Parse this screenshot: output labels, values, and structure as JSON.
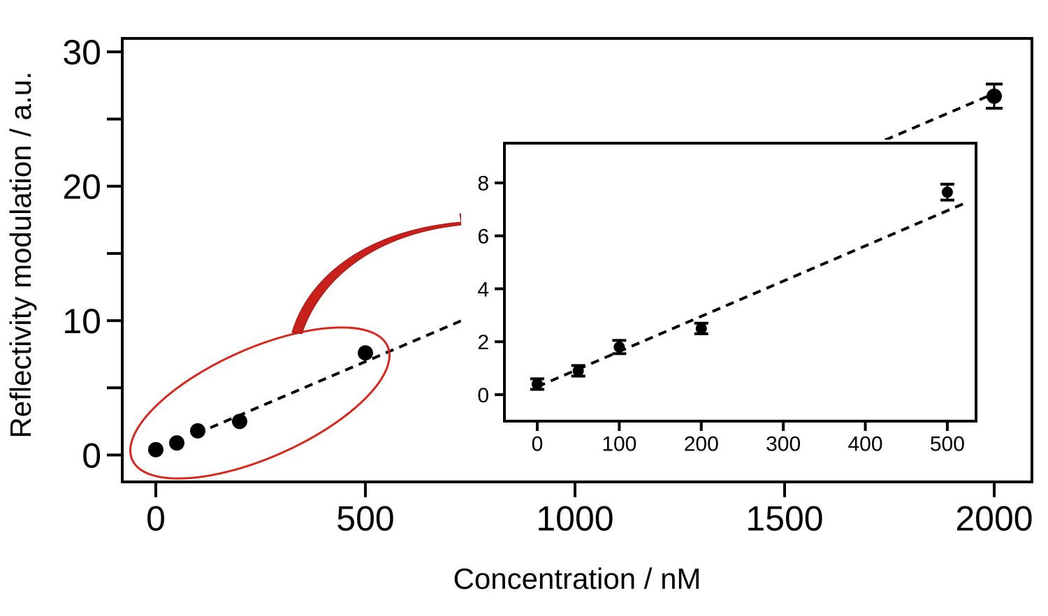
{
  "chart_data": [
    {
      "type": "scatter",
      "panel": "main",
      "xlabel": "Concentration / nM",
      "ylabel": "Reflectivity modulation / a.u.",
      "xlim": [
        -80,
        2090
      ],
      "ylim": [
        -2,
        31
      ],
      "xticks": [
        0,
        500,
        1000,
        1500,
        2000
      ],
      "xtick_labels": [
        "0",
        "500",
        "1000",
        "1500",
        "2000"
      ],
      "yticks": [
        0,
        10,
        20,
        30
      ],
      "ytick_labels": [
        "0",
        "10",
        "20",
        "30"
      ],
      "yminor_ticks": [
        5,
        15,
        25
      ],
      "points": [
        {
          "x": 0,
          "y": 0.4,
          "err": 0.3
        },
        {
          "x": 50,
          "y": 0.9,
          "err": 0.3
        },
        {
          "x": 100,
          "y": 1.8,
          "err": 0.3
        },
        {
          "x": 200,
          "y": 2.5,
          "err": 0.3
        },
        {
          "x": 500,
          "y": 7.6,
          "err": 0.3
        },
        {
          "x": 2000,
          "y": 26.7,
          "err": 0.9
        }
      ],
      "fit_line": {
        "slope": 0.0133,
        "intercept": 0.3,
        "style": "dashed"
      },
      "marker_color": "#000000",
      "highlight_color": "#d8281e",
      "grid": false
    },
    {
      "type": "scatter",
      "panel": "inset",
      "xlim": [
        -40,
        535
      ],
      "ylim": [
        -1,
        9.5
      ],
      "xticks": [
        0,
        100,
        200,
        300,
        400,
        500
      ],
      "xtick_labels": [
        "0",
        "100",
        "200",
        "300",
        "400",
        "500"
      ],
      "yticks": [
        0,
        2,
        4,
        6,
        8
      ],
      "ytick_labels": [
        "0",
        "2",
        "4",
        "6",
        "8"
      ],
      "points": [
        {
          "x": 0,
          "y": 0.4,
          "err": 0.2
        },
        {
          "x": 50,
          "y": 0.9,
          "err": 0.2
        },
        {
          "x": 100,
          "y": 1.8,
          "err": 0.25
        },
        {
          "x": 200,
          "y": 2.5,
          "err": 0.2
        },
        {
          "x": 500,
          "y": 7.65,
          "err": 0.3
        }
      ],
      "fit_line": {
        "slope": 0.0133,
        "intercept": 0.3,
        "x_range": [
          0,
          520
        ],
        "style": "dashed"
      },
      "grid": false
    }
  ]
}
